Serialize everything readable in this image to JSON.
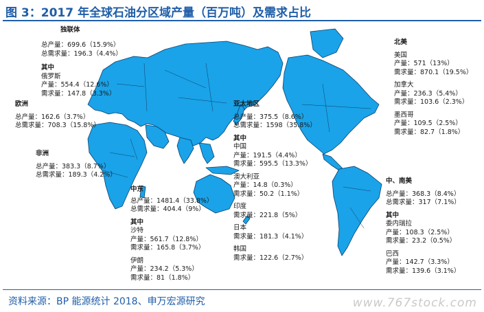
{
  "title": "图 3：2017 年全球石油分区域产量（百万吨）及需求占比",
  "source": "资料来源：BP 能源统计 2018、申万宏源研究",
  "watermark": "www.767stock.com",
  "colors": {
    "land": "#1aa3e8",
    "border": "#0b3d6b",
    "accent": "#1f5ea8"
  },
  "regions": {
    "cis": {
      "name": "独联体",
      "lines": [
        "总产量：699.6（15.9%）",
        "总需求量：196.3（4.4%）"
      ],
      "sub": "其中",
      "sub_name": "俄罗斯",
      "sub_lines": [
        "产量：554.4（12.6%）",
        "需求量：147.8（3.3%）"
      ]
    },
    "europe": {
      "name": "欧洲",
      "lines": [
        "总产量：162.6（3.7%）",
        "总需求量：708.3（15.8%）"
      ]
    },
    "africa": {
      "name": "非洲",
      "lines": [
        "总产量：383.3（8.7%）",
        "总需求量：189.3（4.2%）"
      ]
    },
    "mideast": {
      "name": "中东",
      "lines": [
        "总产量：1481.4（33.8%）",
        "总需求量：404.4（9%）"
      ],
      "sub": "其中",
      "sub_name": "沙特",
      "sub_lines": [
        "产量：561.7（12.8%）",
        "需求量：165.8（3.7%）"
      ],
      "sub2_name": "伊朗",
      "sub2_lines": [
        "产量：234.2（5.3%）",
        "需求量：81（1.8%）"
      ]
    },
    "asia_pacific": {
      "name": "亚太地区",
      "lines": [
        "总产量：375.5（8.6%）",
        "总需求量：1598（35.8%）"
      ],
      "sub": "其中",
      "china_name": "中国",
      "china_lines": [
        "产量：191.5（4.4%）",
        "需求量：595.5（13.3%）"
      ],
      "aus_name": "澳大利亚",
      "aus_lines": [
        "产量：14.8（0.3%）",
        "需求量：50.2（1.1%）"
      ],
      "india_name": "印度",
      "india_lines": [
        "需求量：221.8（5%）"
      ],
      "japan_name": "日本",
      "japan_lines": [
        "需求量：181.3（4.1%）"
      ],
      "korea_name": "韩国",
      "korea_lines": [
        "需求量：122.6（2.7%）"
      ]
    },
    "north_america": {
      "name": "北美",
      "us_name": "美国",
      "us_lines": [
        "产量：571（13%）",
        "需求量：870.1（19.5%）"
      ],
      "canada_name": "加拿大",
      "canada_lines": [
        "产量：236.3（5.4%）",
        "需求量：103.6（2.3%）"
      ],
      "mexico_name": "墨西哥",
      "mexico_lines": [
        "产量：109.5（2.5%）",
        "需求量：82.7（1.8%）"
      ]
    },
    "latin_america": {
      "name": "中、南美",
      "lines": [
        "总产量：368.3（8.4%）",
        "总需求量：317（7.1%）"
      ],
      "sub": "其中",
      "venezuela_name": "委内瑞拉",
      "venezuela_lines": [
        "产量：108.3（2.5%）",
        "需求量：23.2（0.5%）"
      ],
      "brazil_name": "巴西",
      "brazil_lines": [
        "产量：142.7（3.3%）",
        "需求量：139.6（3.1%）"
      ]
    }
  }
}
